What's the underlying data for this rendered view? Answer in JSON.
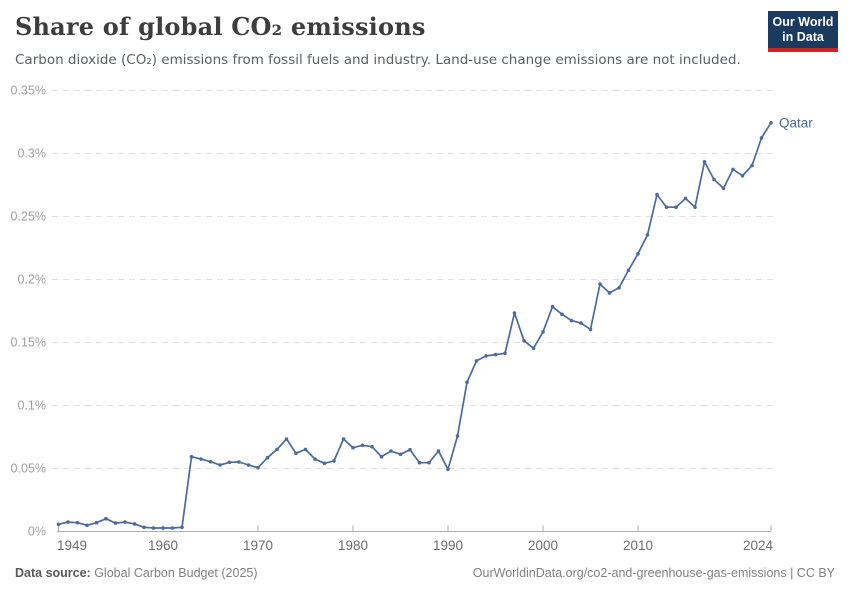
{
  "header": {
    "title": "Share of global CO₂ emissions",
    "subtitle": "Carbon dioxide (CO₂) emissions from fossil fuels and industry. Land-use change emissions are not included.",
    "logo": {
      "line1": "Our World",
      "line2": "in Data"
    }
  },
  "footer": {
    "source_label": "Data source:",
    "source_value": " Global Carbon Budget (2025)",
    "right_text": "OurWorldinData.org/co2-and-greenhouse-gas-emissions | CC BY"
  },
  "colors": {
    "line": "#4C6A9C",
    "series_label": "#4C6A9C",
    "gridline": "#e0e0e0",
    "axis": "#adadad",
    "y_tick_label": "#9e9e9e",
    "x_tick_label": "#6d6d6d",
    "logo_bg": "#1a3a5f",
    "logo_stripe": "#cf2426"
  },
  "chart_data": {
    "type": "line",
    "title": "Share of global CO₂ emissions",
    "series_label": "Qatar",
    "unit": "%",
    "grid": "horizontal-dashed",
    "legend_position": "end-of-line",
    "xlim": [
      1949,
      2024
    ],
    "ylim": [
      0,
      0.35
    ],
    "x_ticks": [
      1949,
      1960,
      1970,
      1980,
      1990,
      2000,
      2010,
      2024
    ],
    "y_ticks": {
      "values": [
        0,
        0.05,
        0.1,
        0.15,
        0.2,
        0.25,
        0.3,
        0.35
      ],
      "labels": [
        "0%",
        "0.05%",
        "0.1%",
        "0.15%",
        "0.2%",
        "0.25%",
        "0.3%",
        "0.35%"
      ]
    },
    "x": [
      1949,
      1950,
      1951,
      1952,
      1953,
      1954,
      1955,
      1956,
      1957,
      1958,
      1959,
      1960,
      1961,
      1962,
      1963,
      1964,
      1965,
      1966,
      1967,
      1968,
      1969,
      1970,
      1971,
      1972,
      1973,
      1974,
      1975,
      1976,
      1977,
      1978,
      1979,
      1980,
      1981,
      1982,
      1983,
      1984,
      1985,
      1986,
      1987,
      1988,
      1989,
      1990,
      1991,
      1992,
      1993,
      1994,
      1995,
      1996,
      1997,
      1998,
      1999,
      2000,
      2001,
      2002,
      2003,
      2004,
      2005,
      2006,
      2007,
      2008,
      2009,
      2010,
      2011,
      2012,
      2013,
      2014,
      2015,
      2016,
      2017,
      2018,
      2019,
      2020,
      2021,
      2022,
      2023,
      2024
    ],
    "values": [
      0.0053,
      0.0071,
      0.0066,
      0.0045,
      0.0066,
      0.0098,
      0.0063,
      0.0071,
      0.0056,
      0.0029,
      0.0024,
      0.0024,
      0.0024,
      0.0029,
      0.059,
      0.0571,
      0.055,
      0.0524,
      0.0545,
      0.0548,
      0.0524,
      0.0502,
      0.0582,
      0.0648,
      0.073,
      0.0617,
      0.0648,
      0.0571,
      0.0537,
      0.0556,
      0.073,
      0.0661,
      0.068,
      0.0669,
      0.059,
      0.0635,
      0.0609,
      0.0645,
      0.0542,
      0.0542,
      0.0635,
      0.049,
      0.0754,
      0.118,
      0.135,
      0.139,
      0.14,
      0.141,
      0.173,
      0.151,
      0.145,
      0.158,
      0.178,
      0.172,
      0.167,
      0.165,
      0.16,
      0.196,
      0.189,
      0.193,
      0.207,
      0.22,
      0.235,
      0.267,
      0.257,
      0.257,
      0.264,
      0.257,
      0.293,
      0.279,
      0.272,
      0.287,
      0.282,
      0.29,
      0.312,
      0.324
    ]
  }
}
